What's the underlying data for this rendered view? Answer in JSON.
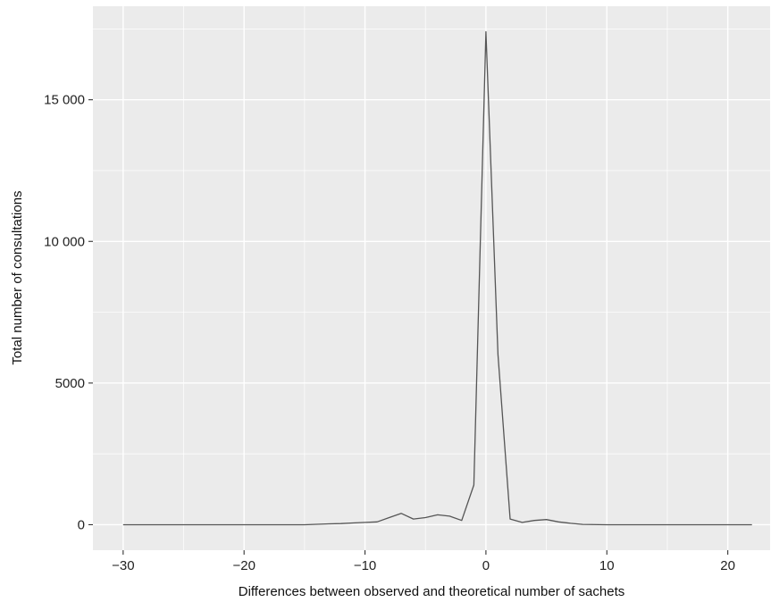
{
  "chart_data": {
    "type": "line",
    "title": "",
    "xlabel": "Differences between observed and theoretical number of sachets",
    "ylabel": "Total number of consultations",
    "xlim": [
      -32.5,
      23.5
    ],
    "ylim": [
      -900,
      18300
    ],
    "x_ticks": [
      -30,
      -20,
      -10,
      0,
      10,
      20
    ],
    "x_tick_labels": [
      "−30",
      "−20",
      "−10",
      "0",
      "10",
      "20"
    ],
    "y_ticks": [
      0,
      5000,
      10000,
      15000
    ],
    "y_tick_labels": [
      "0",
      "5000",
      "10 000",
      "15 000"
    ],
    "grid": true,
    "legend": "none",
    "colors": {
      "panel": "#ebebeb",
      "grid": "#ffffff",
      "line": "#555555",
      "text": "#222222"
    },
    "series": [
      {
        "x": [
          -30,
          -25,
          -20,
          -15,
          -13,
          -12,
          -11,
          -10,
          -9,
          -8,
          -7,
          -6,
          -5,
          -4,
          -3,
          -2,
          -1,
          0,
          1,
          2,
          3,
          4,
          5,
          6,
          7,
          8,
          10,
          15,
          20,
          22
        ],
        "y": [
          0,
          0,
          0,
          0,
          30,
          40,
          60,
          80,
          100,
          250,
          400,
          200,
          250,
          350,
          300,
          150,
          1400,
          17400,
          6000,
          200,
          80,
          150,
          180,
          100,
          50,
          10,
          0,
          0,
          0,
          0
        ]
      }
    ]
  }
}
